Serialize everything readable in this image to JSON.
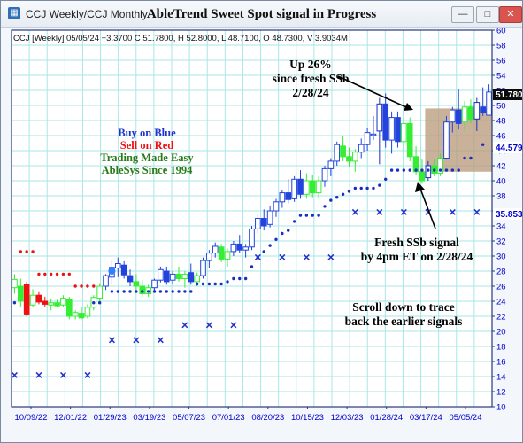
{
  "window": {
    "title": "CCJ Weekly/CCJ Monthly",
    "chart_title": "AbleTrend Sweet Spot signal in Progress",
    "buttons": {
      "minimize": "—",
      "maximize": "□",
      "close": "✕"
    }
  },
  "info_line": "CCJ [Weekly] 05/05/24 +3.3700 C 51.7800, H 52.8000, L 48.7100, O 48.7300, V 3.9034M",
  "annotations": {
    "up_pct": [
      "Up 26%",
      "since fresh SSb",
      "2/28/24"
    ],
    "legend": {
      "buy": "Buy on Blue",
      "sell": "Sell on Red",
      "easy": "Trading Made Easy",
      "since": "AbleSys Since 1994"
    },
    "fresh": [
      "Fresh SSb signal",
      "by 4pm ET on 2/28/24"
    ],
    "scroll": [
      "Scroll down to trace",
      "back the earlier signals"
    ]
  },
  "price_labels": {
    "last": "51.780",
    "mid": "44.579",
    "low": "35.853"
  },
  "colors": {
    "blue": "#2244dd",
    "red": "#ee1111",
    "green": "#33ee33",
    "navy": "#1a2ec0",
    "grid": "#a9e6e6",
    "price_axis": "#0000cc",
    "highlight": "#b89878",
    "dark_green": "#2a7a1a"
  },
  "chart_data": {
    "type": "bar",
    "xlabels": [
      "10/09/22",
      "12/01/22",
      "01/29/23",
      "03/19/23",
      "05/07/23",
      "07/01/23",
      "08/20/23",
      "10/15/23",
      "12/03/23",
      "01/28/24",
      "03/17/24",
      "05/05/24"
    ],
    "y_ticks": [
      10,
      12,
      14,
      16,
      18,
      20,
      22,
      24,
      26,
      28,
      30,
      32,
      34,
      36,
      38,
      40,
      42,
      44,
      46,
      48,
      50,
      52,
      54,
      56,
      58,
      60
    ],
    "ylim": [
      10,
      60
    ],
    "bars": [
      {
        "i": 0,
        "o": 25.8,
        "h": 27.6,
        "l": 25.0,
        "c": 26.9,
        "col": "green"
      },
      {
        "i": 1,
        "o": 26.0,
        "h": 27.0,
        "l": 23.2,
        "c": 24.0,
        "col": "green"
      },
      {
        "i": 2,
        "o": 26.2,
        "h": 26.6,
        "l": 22.0,
        "c": 22.3,
        "col": "red"
      },
      {
        "i": 3,
        "o": 23.5,
        "h": 25.6,
        "l": 23.2,
        "c": 24.8,
        "col": "green"
      },
      {
        "i": 4,
        "o": 24.8,
        "h": 25.2,
        "l": 23.6,
        "c": 23.9,
        "col": "red"
      },
      {
        "i": 5,
        "o": 24.0,
        "h": 24.6,
        "l": 23.3,
        "c": 23.6,
        "col": "red"
      },
      {
        "i": 6,
        "o": 23.5,
        "h": 24.3,
        "l": 22.8,
        "c": 23.8,
        "col": "green"
      },
      {
        "i": 7,
        "o": 23.8,
        "h": 24.2,
        "l": 23.2,
        "c": 23.4,
        "col": "green"
      },
      {
        "i": 8,
        "o": 23.5,
        "h": 24.8,
        "l": 23.2,
        "c": 24.4,
        "col": "green"
      },
      {
        "i": 9,
        "o": 24.3,
        "h": 24.6,
        "l": 21.6,
        "c": 22.0,
        "col": "green"
      },
      {
        "i": 10,
        "o": 22.0,
        "h": 22.8,
        "l": 21.6,
        "c": 22.5,
        "col": "green"
      },
      {
        "i": 11,
        "o": 22.4,
        "h": 23.2,
        "l": 21.6,
        "c": 21.8,
        "col": "green"
      },
      {
        "i": 12,
        "o": 22.0,
        "h": 23.6,
        "l": 21.7,
        "c": 23.2,
        "col": "green"
      },
      {
        "i": 13,
        "o": 23.2,
        "h": 24.8,
        "l": 22.8,
        "c": 24.5,
        "col": "green"
      },
      {
        "i": 14,
        "o": 24.4,
        "h": 26.4,
        "l": 24.0,
        "c": 26.0,
        "col": "green"
      },
      {
        "i": 15,
        "o": 26.0,
        "h": 27.6,
        "l": 25.5,
        "c": 27.4,
        "col": "blue"
      },
      {
        "i": 16,
        "o": 27.2,
        "h": 29.4,
        "l": 26.2,
        "c": 28.5,
        "col": "blue"
      },
      {
        "i": 17,
        "o": 28.4,
        "h": 29.8,
        "l": 27.2,
        "c": 29.0,
        "col": "blue"
      },
      {
        "i": 18,
        "o": 28.8,
        "h": 29.3,
        "l": 27.0,
        "c": 27.5,
        "col": "blue"
      },
      {
        "i": 19,
        "o": 27.4,
        "h": 28.2,
        "l": 26.0,
        "c": 26.6,
        "col": "blue"
      },
      {
        "i": 20,
        "o": 26.6,
        "h": 27.6,
        "l": 25.5,
        "c": 26.0,
        "col": "green"
      },
      {
        "i": 21,
        "o": 26.0,
        "h": 26.8,
        "l": 24.6,
        "c": 25.0,
        "col": "green"
      },
      {
        "i": 22,
        "o": 25.0,
        "h": 26.2,
        "l": 24.6,
        "c": 25.8,
        "col": "green"
      },
      {
        "i": 23,
        "o": 25.8,
        "h": 27.0,
        "l": 25.4,
        "c": 26.8,
        "col": "blue"
      },
      {
        "i": 24,
        "o": 26.8,
        "h": 28.6,
        "l": 26.5,
        "c": 28.2,
        "col": "blue"
      },
      {
        "i": 25,
        "o": 28.0,
        "h": 28.6,
        "l": 26.2,
        "c": 26.6,
        "col": "blue"
      },
      {
        "i": 26,
        "o": 26.8,
        "h": 28.0,
        "l": 26.2,
        "c": 27.6,
        "col": "blue"
      },
      {
        "i": 27,
        "o": 27.6,
        "h": 28.6,
        "l": 26.6,
        "c": 27.0,
        "col": "green"
      },
      {
        "i": 28,
        "o": 27.0,
        "h": 28.0,
        "l": 25.8,
        "c": 27.6,
        "col": "green"
      },
      {
        "i": 29,
        "o": 27.8,
        "h": 29.0,
        "l": 26.2,
        "c": 26.6,
        "col": "blue"
      },
      {
        "i": 30,
        "o": 26.6,
        "h": 27.8,
        "l": 26.0,
        "c": 27.4,
        "col": "green"
      },
      {
        "i": 31,
        "o": 27.4,
        "h": 29.8,
        "l": 27.0,
        "c": 29.4,
        "col": "blue"
      },
      {
        "i": 32,
        "o": 29.4,
        "h": 30.8,
        "l": 28.4,
        "c": 30.4,
        "col": "blue"
      },
      {
        "i": 33,
        "o": 30.4,
        "h": 31.8,
        "l": 29.8,
        "c": 31.3,
        "col": "blue"
      },
      {
        "i": 34,
        "o": 31.2,
        "h": 31.6,
        "l": 29.2,
        "c": 29.6,
        "col": "green"
      },
      {
        "i": 35,
        "o": 29.6,
        "h": 31.0,
        "l": 28.6,
        "c": 30.6,
        "col": "green"
      },
      {
        "i": 36,
        "o": 30.6,
        "h": 32.0,
        "l": 30.0,
        "c": 31.6,
        "col": "blue"
      },
      {
        "i": 37,
        "o": 31.6,
        "h": 32.8,
        "l": 30.4,
        "c": 30.8,
        "col": "blue"
      },
      {
        "i": 38,
        "o": 30.8,
        "h": 31.6,
        "l": 29.8,
        "c": 31.2,
        "col": "blue"
      },
      {
        "i": 39,
        "o": 31.2,
        "h": 34.0,
        "l": 30.8,
        "c": 33.6,
        "col": "blue"
      },
      {
        "i": 40,
        "o": 33.6,
        "h": 35.6,
        "l": 33.0,
        "c": 35.0,
        "col": "blue"
      },
      {
        "i": 41,
        "o": 35.0,
        "h": 36.2,
        "l": 33.4,
        "c": 34.0,
        "col": "blue"
      },
      {
        "i": 42,
        "o": 34.2,
        "h": 36.6,
        "l": 33.8,
        "c": 36.0,
        "col": "blue"
      },
      {
        "i": 43,
        "o": 36.0,
        "h": 37.6,
        "l": 35.2,
        "c": 37.2,
        "col": "blue"
      },
      {
        "i": 44,
        "o": 37.2,
        "h": 38.8,
        "l": 36.4,
        "c": 38.4,
        "col": "blue"
      },
      {
        "i": 45,
        "o": 38.4,
        "h": 40.2,
        "l": 37.0,
        "c": 37.5,
        "col": "blue"
      },
      {
        "i": 46,
        "o": 37.6,
        "h": 40.6,
        "l": 37.2,
        "c": 40.2,
        "col": "blue"
      },
      {
        "i": 47,
        "o": 40.2,
        "h": 41.4,
        "l": 37.6,
        "c": 38.2,
        "col": "blue"
      },
      {
        "i": 48,
        "o": 38.2,
        "h": 41.0,
        "l": 37.6,
        "c": 40.0,
        "col": "green"
      },
      {
        "i": 49,
        "o": 40.0,
        "h": 40.8,
        "l": 37.8,
        "c": 38.4,
        "col": "green"
      },
      {
        "i": 50,
        "o": 38.4,
        "h": 40.6,
        "l": 37.6,
        "c": 40.0,
        "col": "green"
      },
      {
        "i": 51,
        "o": 40.0,
        "h": 42.0,
        "l": 39.2,
        "c": 41.6,
        "col": "blue"
      },
      {
        "i": 52,
        "o": 41.6,
        "h": 43.0,
        "l": 40.6,
        "c": 42.6,
        "col": "blue"
      },
      {
        "i": 53,
        "o": 42.6,
        "h": 45.2,
        "l": 42.0,
        "c": 44.8,
        "col": "blue"
      },
      {
        "i": 54,
        "o": 44.6,
        "h": 46.0,
        "l": 42.6,
        "c": 43.2,
        "col": "green"
      },
      {
        "i": 55,
        "o": 43.2,
        "h": 44.4,
        "l": 41.8,
        "c": 42.6,
        "col": "green"
      },
      {
        "i": 56,
        "o": 42.6,
        "h": 44.2,
        "l": 41.2,
        "c": 43.8,
        "col": "green"
      },
      {
        "i": 57,
        "o": 43.8,
        "h": 45.6,
        "l": 43.0,
        "c": 44.8,
        "col": "blue"
      },
      {
        "i": 58,
        "o": 44.8,
        "h": 47.0,
        "l": 44.0,
        "c": 46.4,
        "col": "blue"
      },
      {
        "i": 59,
        "o": 46.2,
        "h": 48.6,
        "l": 45.4,
        "c": 46.2,
        "col": "blue"
      },
      {
        "i": 60,
        "o": 46.6,
        "h": 51.0,
        "l": 42.2,
        "c": 50.2,
        "col": "navy"
      },
      {
        "i": 61,
        "o": 50.2,
        "h": 51.6,
        "l": 44.4,
        "c": 45.4,
        "col": "blue"
      },
      {
        "i": 62,
        "o": 45.4,
        "h": 49.2,
        "l": 43.6,
        "c": 48.4,
        "col": "blue"
      },
      {
        "i": 63,
        "o": 48.4,
        "h": 49.2,
        "l": 44.4,
        "c": 45.2,
        "col": "blue"
      },
      {
        "i": 64,
        "o": 45.2,
        "h": 48.2,
        "l": 44.0,
        "c": 47.6,
        "col": "green"
      },
      {
        "i": 65,
        "o": 47.6,
        "h": 48.4,
        "l": 42.6,
        "c": 43.2,
        "col": "green"
      },
      {
        "i": 66,
        "o": 43.2,
        "h": 44.6,
        "l": 40.8,
        "c": 41.2,
        "col": "green"
      },
      {
        "i": 67,
        "o": 41.2,
        "h": 42.8,
        "l": 39.6,
        "c": 40.0,
        "col": "green"
      },
      {
        "i": 68,
        "o": 40.4,
        "h": 42.6,
        "l": 40.0,
        "c": 42.0,
        "col": "navy"
      },
      {
        "i": 69,
        "o": 42.0,
        "h": 42.8,
        "l": 40.6,
        "c": 41.0,
        "col": "green"
      },
      {
        "i": 70,
        "o": 41.0,
        "h": 43.6,
        "l": 40.6,
        "c": 43.0,
        "col": "green"
      },
      {
        "i": 71,
        "o": 43.0,
        "h": 48.6,
        "l": 42.8,
        "c": 47.8,
        "col": "blue"
      },
      {
        "i": 72,
        "o": 47.8,
        "h": 49.8,
        "l": 46.4,
        "c": 49.4,
        "col": "blue"
      },
      {
        "i": 73,
        "o": 49.4,
        "h": 52.2,
        "l": 46.8,
        "c": 47.6,
        "col": "blue"
      },
      {
        "i": 74,
        "o": 47.8,
        "h": 50.6,
        "l": 46.6,
        "c": 49.8,
        "col": "green"
      },
      {
        "i": 75,
        "o": 49.8,
        "h": 50.8,
        "l": 47.6,
        "c": 48.2,
        "col": "green"
      },
      {
        "i": 76,
        "o": 48.2,
        "h": 51.0,
        "l": 46.6,
        "c": 50.4,
        "col": "navy"
      },
      {
        "i": 77,
        "o": 49.8,
        "h": 52.4,
        "l": 48.6,
        "c": 49.0,
        "col": "blue"
      },
      {
        "i": 78,
        "o": 48.7,
        "h": 52.8,
        "l": 48.7,
        "c": 51.78,
        "col": "blue"
      }
    ],
    "red_dots": [
      {
        "i": 1,
        "v": 30.6
      },
      {
        "i": 2,
        "v": 30.6
      },
      {
        "i": 3,
        "v": 30.6
      },
      {
        "i": 4,
        "v": 27.6
      },
      {
        "i": 5,
        "v": 27.6
      },
      {
        "i": 6,
        "v": 27.6
      },
      {
        "i": 7,
        "v": 27.6
      },
      {
        "i": 8,
        "v": 27.6
      },
      {
        "i": 9,
        "v": 27.6
      },
      {
        "i": 10,
        "v": 26.0
      },
      {
        "i": 11,
        "v": 26.0
      },
      {
        "i": 12,
        "v": 26.0
      },
      {
        "i": 13,
        "v": 26.0
      }
    ],
    "blue_dots": [
      {
        "i": 0,
        "v": 23.8
      },
      {
        "i": 13,
        "v": 23.8
      },
      {
        "i": 14,
        "v": 23.8
      },
      {
        "i": 16,
        "v": 25.3
      },
      {
        "i": 17,
        "v": 25.3
      },
      {
        "i": 18,
        "v": 25.3
      },
      {
        "i": 19,
        "v": 25.3
      },
      {
        "i": 20,
        "v": 25.3
      },
      {
        "i": 21,
        "v": 25.3
      },
      {
        "i": 22,
        "v": 25.3
      },
      {
        "i": 23,
        "v": 25.3
      },
      {
        "i": 24,
        "v": 25.3
      },
      {
        "i": 25,
        "v": 25.3
      },
      {
        "i": 26,
        "v": 25.3
      },
      {
        "i": 27,
        "v": 25.3
      },
      {
        "i": 28,
        "v": 25.3
      },
      {
        "i": 29,
        "v": 25.3
      },
      {
        "i": 30,
        "v": 26.3
      },
      {
        "i": 31,
        "v": 26.3
      },
      {
        "i": 32,
        "v": 26.3
      },
      {
        "i": 33,
        "v": 26.3
      },
      {
        "i": 34,
        "v": 26.3
      },
      {
        "i": 35,
        "v": 26.6
      },
      {
        "i": 36,
        "v": 27.0
      },
      {
        "i": 37,
        "v": 27.0
      },
      {
        "i": 38,
        "v": 27.0
      },
      {
        "i": 39,
        "v": 28.6
      },
      {
        "i": 40,
        "v": 29.8
      },
      {
        "i": 41,
        "v": 30.6
      },
      {
        "i": 42,
        "v": 31.4
      },
      {
        "i": 43,
        "v": 32.2
      },
      {
        "i": 44,
        "v": 33.0
      },
      {
        "i": 45,
        "v": 33.4
      },
      {
        "i": 46,
        "v": 34.6
      },
      {
        "i": 47,
        "v": 35.4
      },
      {
        "i": 48,
        "v": 35.4
      },
      {
        "i": 49,
        "v": 35.4
      },
      {
        "i": 50,
        "v": 35.4
      },
      {
        "i": 51,
        "v": 36.6
      },
      {
        "i": 52,
        "v": 37.4
      },
      {
        "i": 53,
        "v": 37.8
      },
      {
        "i": 54,
        "v": 38.2
      },
      {
        "i": 55,
        "v": 38.6
      },
      {
        "i": 56,
        "v": 39.0
      },
      {
        "i": 57,
        "v": 39.0
      },
      {
        "i": 58,
        "v": 39.0
      },
      {
        "i": 59,
        "v": 39.0
      },
      {
        "i": 60,
        "v": 39.4
      },
      {
        "i": 61,
        "v": 40.2
      },
      {
        "i": 62,
        "v": 41.4
      },
      {
        "i": 63,
        "v": 41.4
      },
      {
        "i": 64,
        "v": 41.4
      },
      {
        "i": 65,
        "v": 41.4
      },
      {
        "i": 66,
        "v": 41.4
      },
      {
        "i": 67,
        "v": 41.4
      },
      {
        "i": 68,
        "v": 41.4
      },
      {
        "i": 69,
        "v": 41.4
      },
      {
        "i": 70,
        "v": 41.4
      },
      {
        "i": 71,
        "v": 41.4
      },
      {
        "i": 72,
        "v": 41.4
      },
      {
        "i": 73,
        "v": 41.4
      },
      {
        "i": 74,
        "v": 43.0
      },
      {
        "i": 75,
        "v": 43.0
      },
      {
        "i": 77,
        "v": 44.8
      }
    ],
    "x_marks": [
      {
        "i": 0,
        "v": 14.2
      },
      {
        "i": 4,
        "v": 14.2
      },
      {
        "i": 8,
        "v": 14.2
      },
      {
        "i": 12,
        "v": 14.2
      },
      {
        "i": 16,
        "v": 18.8
      },
      {
        "i": 20,
        "v": 18.8
      },
      {
        "i": 24,
        "v": 18.8
      },
      {
        "i": 28,
        "v": 20.8
      },
      {
        "i": 32,
        "v": 20.8
      },
      {
        "i": 36,
        "v": 20.8
      },
      {
        "i": 40,
        "v": 29.8
      },
      {
        "i": 44,
        "v": 29.8
      },
      {
        "i": 48,
        "v": 29.8
      },
      {
        "i": 52,
        "v": 29.8
      },
      {
        "i": 56,
        "v": 35.8
      },
      {
        "i": 60,
        "v": 35.8
      },
      {
        "i": 64,
        "v": 35.8
      },
      {
        "i": 68,
        "v": 35.8
      },
      {
        "i": 72,
        "v": 35.8
      },
      {
        "i": 76,
        "v": 35.8
      }
    ],
    "highlight": {
      "i0": 68,
      "i1": 79,
      "v0": 41.2,
      "v1": 49.6
    }
  }
}
